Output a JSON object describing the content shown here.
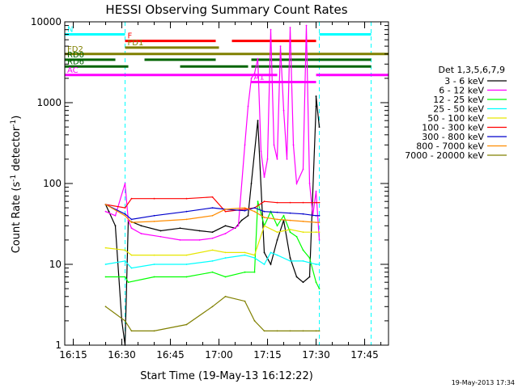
{
  "chart_data": {
    "type": "line",
    "title": "HESSI Observing Summary Count Rates",
    "xlabel": "Start Time (19-May-13 16:12:22)",
    "ylabel": "Count Rate (s⁻¹ detector⁻¹)",
    "ylabel_main": "Count Rate (s",
    "ylabel_sup1": "-1",
    "ylabel_mid": " detector",
    "ylabel_sup2": "-1",
    "ylabel_end": ")",
    "yscale": "log",
    "ylim": [
      1,
      10000
    ],
    "xlim": [
      "16:12:22",
      "17:52:22"
    ],
    "x_ticks": [
      "16:15",
      "16:30",
      "16:45",
      "17:00",
      "17:15",
      "17:30",
      "17:45"
    ],
    "y_ticks": [
      "1",
      "10",
      "100",
      "1000",
      "10000"
    ],
    "footer_date": "19-May-2013 17:34",
    "legend_title": "Det 1,3,5,6,7,9",
    "legend_placement": "right",
    "series": [
      {
        "name": "3 - 6 keV",
        "color": "#000000",
        "x": [
          "16:25",
          "16:26",
          "16:28",
          "16:30",
          "16:31",
          "16:32",
          "16:36",
          "16:42",
          "16:48",
          "16:54",
          "16:58",
          "17:02",
          "17:05",
          "17:07",
          "17:09",
          "17:10",
          "17:12",
          "17:14",
          "17:16",
          "17:18",
          "17:20",
          "17:22",
          "17:24",
          "17:26",
          "17:28",
          "17:30",
          "17:30",
          "17:31"
        ],
        "y": [
          55,
          45,
          30,
          2,
          1,
          35,
          30,
          26,
          28,
          26,
          25,
          30,
          28,
          35,
          40,
          100,
          600,
          14,
          10,
          20,
          35,
          12,
          7,
          6,
          7,
          900,
          1200,
          500
        ]
      },
      {
        "name": "6 - 12 keV",
        "color": "#ff00ff",
        "x": [
          "16:25",
          "16:28",
          "16:31",
          "16:32",
          "16:33",
          "16:36",
          "16:42",
          "16:48",
          "16:54",
          "16:58",
          "17:02",
          "17:06",
          "17:08",
          "17:09",
          "17:10",
          "17:11",
          "17:12",
          "17:13",
          "17:14",
          "17:15",
          "17:16",
          "17:17",
          "17:18",
          "17:19",
          "17:20",
          "17:21",
          "17:22",
          "17:23",
          "17:24",
          "17:26",
          "17:27",
          "17:28",
          "17:29",
          "17:30",
          "17:31"
        ],
        "y": [
          45,
          40,
          100,
          35,
          28,
          24,
          22,
          20,
          20,
          21,
          24,
          30,
          300,
          900,
          2000,
          2300,
          3500,
          250,
          120,
          200,
          8000,
          300,
          200,
          5000,
          800,
          200,
          8500,
          300,
          100,
          150,
          9000,
          100,
          40,
          80,
          20
        ]
      },
      {
        "name": "12 - 25 keV",
        "color": "#00ff00",
        "x": [
          "16:25",
          "16:31",
          "16:32",
          "16:40",
          "16:50",
          "16:58",
          "17:02",
          "17:08",
          "17:11",
          "17:12",
          "17:14",
          "17:16",
          "17:18",
          "17:20",
          "17:22",
          "17:24",
          "17:26",
          "17:28",
          "17:30",
          "17:31"
        ],
        "y": [
          7,
          7,
          6,
          7,
          7,
          8,
          7,
          8,
          8,
          60,
          30,
          45,
          30,
          40,
          25,
          22,
          15,
          12,
          6,
          5
        ]
      },
      {
        "name": "25 - 50 keV",
        "color": "#00ffff",
        "x": [
          "16:25",
          "16:31",
          "16:33",
          "16:40",
          "16:50",
          "16:58",
          "17:02",
          "17:08",
          "17:11",
          "17:14",
          "17:16",
          "17:18",
          "17:22",
          "17:26",
          "17:30",
          "17:31"
        ],
        "y": [
          10,
          11,
          9,
          10,
          10,
          11,
          12,
          13,
          12,
          10,
          14,
          13,
          11,
          11,
          10,
          10
        ]
      },
      {
        "name": "50 - 100 keV",
        "color": "#e6e600",
        "x": [
          "16:25",
          "16:31",
          "16:33",
          "16:40",
          "16:50",
          "16:58",
          "17:02",
          "17:08",
          "17:11",
          "17:14",
          "17:18",
          "17:22",
          "17:26",
          "17:30",
          "17:31"
        ],
        "y": [
          16,
          15,
          13,
          13,
          13,
          15,
          14,
          14,
          13,
          30,
          25,
          27,
          25,
          25,
          25
        ]
      },
      {
        "name": "100 - 300 keV",
        "color": "#ff0000",
        "x": [
          "16:25",
          "16:31",
          "16:33",
          "16:40",
          "16:50",
          "16:58",
          "17:02",
          "17:08",
          "17:11",
          "17:14",
          "17:18",
          "17:22",
          "17:26",
          "17:30",
          "17:31"
        ],
        "y": [
          55,
          50,
          65,
          65,
          65,
          68,
          45,
          48,
          50,
          60,
          58,
          58,
          58,
          58,
          58
        ]
      },
      {
        "name": "300 - 800 keV",
        "color": "#0000cc",
        "x": [
          "16:25",
          "16:31",
          "16:33",
          "16:40",
          "16:50",
          "16:58",
          "17:02",
          "17:08",
          "17:11",
          "17:14",
          "17:18",
          "17:22",
          "17:26",
          "17:30",
          "17:31"
        ],
        "y": [
          55,
          42,
          36,
          40,
          45,
          50,
          48,
          46,
          50,
          45,
          44,
          43,
          42,
          40,
          40
        ]
      },
      {
        "name": "800 - 7000 keV",
        "color": "#ff8c00",
        "x": [
          "16:25",
          "16:31",
          "16:33",
          "16:40",
          "16:50",
          "16:58",
          "17:02",
          "17:08",
          "17:11",
          "17:14",
          "17:18",
          "17:22",
          "17:26",
          "17:30",
          "17:31"
        ],
        "y": [
          55,
          40,
          33,
          34,
          36,
          40,
          48,
          50,
          45,
          38,
          36,
          35,
          34,
          33,
          33
        ]
      },
      {
        "name": "7000 - 20000 keV",
        "color": "#808000",
        "x": [
          "16:25",
          "16:31",
          "16:33",
          "16:40",
          "16:50",
          "16:58",
          "17:02",
          "17:08",
          "17:11",
          "17:14",
          "17:18",
          "17:22",
          "17:26",
          "17:30",
          "17:31"
        ],
        "y": [
          3,
          2,
          1.5,
          1.5,
          1.8,
          3,
          4,
          3.5,
          2,
          1.5,
          1.5,
          1.5,
          1.5,
          1.5,
          1.5
        ]
      }
    ],
    "flag_bars": [
      {
        "name": "N",
        "color": "#00ffff",
        "y": 7000,
        "segments": [
          [
            "16:12:22",
            "16:31"
          ],
          [
            "17:31",
            "17:47"
          ]
        ]
      },
      {
        "name": "F",
        "color": "#ff0000",
        "y": 5800,
        "segments": [
          [
            "16:31",
            "16:59"
          ],
          [
            "17:04",
            "17:30"
          ]
        ]
      },
      {
        "name": "FD1",
        "color": "#808000",
        "y": 4800,
        "segments": [
          [
            "16:31",
            "17:00"
          ]
        ]
      },
      {
        "name": "FD2",
        "color": "#808000",
        "y": 4000,
        "segments": [
          [
            "16:12:22",
            "17:52:22"
          ]
        ]
      },
      {
        "name": "RD0",
        "color": "#006400",
        "y": 3400,
        "segments": [
          [
            "16:12:22",
            "16:28"
          ],
          [
            "16:37",
            "16:59"
          ],
          [
            "17:10",
            "17:47"
          ]
        ]
      },
      {
        "name": "RD6",
        "color": "#006400",
        "y": 2800,
        "segments": [
          [
            "16:12:22",
            "16:32"
          ],
          [
            "16:48",
            "17:09"
          ],
          [
            "17:10",
            "17:47"
          ]
        ]
      },
      {
        "name": "AC",
        "color": "#ff00ff",
        "y": 2200,
        "segments": [
          [
            "16:12:22",
            "17:18"
          ],
          [
            "17:30",
            "17:52:22"
          ]
        ]
      },
      {
        "name": "A1",
        "color": "#ff00ff",
        "y": 1800,
        "segments": [
          [
            "17:10",
            "17:30"
          ]
        ]
      }
    ],
    "vertical_markers": [
      "16:31",
      "17:31",
      "17:47"
    ],
    "vertical_marker_color": "#00ffff"
  }
}
